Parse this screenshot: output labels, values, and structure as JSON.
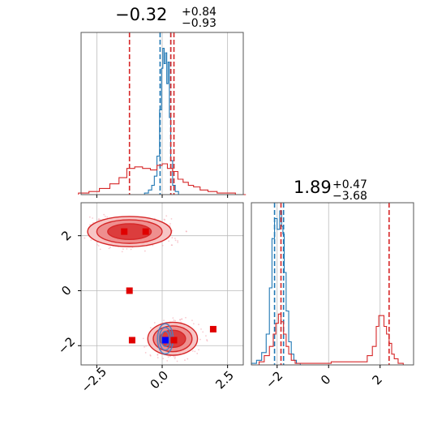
{
  "chart_data": [
    {
      "type": "histogram",
      "panel": "top-left 1D marginal (parameter 1)",
      "title": {
        "value": "−0.32",
        "plus": "+0.84",
        "minus": "−0.93"
      },
      "xlim": [
        -3.1,
        3.1
      ],
      "xticks": [
        -2.5,
        0.0,
        2.5
      ],
      "grid": true,
      "series": [
        {
          "color": "#1f77b4",
          "lines": [
            -0.08,
            0.33
          ],
          "bins_x": [
            -0.75,
            -0.6,
            -0.45,
            -0.35,
            -0.25,
            -0.15,
            -0.05,
            0.0,
            0.05,
            0.1,
            0.15,
            0.2,
            0.25,
            0.3,
            0.35,
            0.45,
            0.55,
            0.7
          ],
          "counts": [
            0,
            0.01,
            0.03,
            0.06,
            0.12,
            0.25,
            0.55,
            0.82,
            0.95,
            0.85,
            0.92,
            0.72,
            0.86,
            0.5,
            0.22,
            0.06,
            0.02,
            0
          ]
        },
        {
          "color": "#d62728",
          "lines": [
            -1.25,
            0.33,
            0.45
          ],
          "bins_x": [
            -3.0,
            -2.6,
            -2.2,
            -1.8,
            -1.5,
            -1.2,
            -0.9,
            -0.6,
            -0.3,
            -0.1,
            0.1,
            0.3,
            0.5,
            0.7,
            0.9,
            1.1,
            1.3,
            1.6,
            1.9,
            2.3,
            2.6,
            3.0
          ],
          "counts": [
            0.01,
            0.02,
            0.04,
            0.07,
            0.11,
            0.17,
            0.18,
            0.17,
            0.16,
            0.19,
            0.2,
            0.17,
            0.15,
            0.1,
            0.08,
            0.06,
            0.05,
            0.03,
            0.02,
            0.01,
            0.01,
            0
          ]
        }
      ]
    },
    {
      "type": "histogram",
      "panel": "bottom-right 1D marginal (parameter 2)",
      "title": {
        "value": "1.89",
        "plus": "+0.47",
        "minus": "−3.68"
      },
      "xlim": [
        -3.0,
        3.3
      ],
      "xticks": [
        -2,
        0,
        2
      ],
      "grid": true,
      "series": [
        {
          "color": "#1f77b4",
          "lines": [
            -2.1,
            -1.75
          ],
          "bins_x": [
            -2.9,
            -2.7,
            -2.5,
            -2.35,
            -2.25,
            -2.15,
            -2.05,
            -1.95,
            -1.85,
            -1.8,
            -1.75,
            -1.7,
            -1.6,
            -1.5,
            -1.4,
            -1.3,
            -1.2,
            -1.0
          ],
          "counts": [
            0.01,
            0.03,
            0.08,
            0.2,
            0.5,
            0.82,
            0.95,
            0.88,
            1.0,
            0.9,
            0.85,
            0.6,
            0.35,
            0.15,
            0.07,
            0.03,
            0.01,
            0
          ]
        },
        {
          "color": "#d62728",
          "lines": [
            -1.85,
            2.35
          ],
          "bins_x": [
            -2.6,
            -2.4,
            -2.2,
            -2.1,
            -2.0,
            -1.9,
            -1.8,
            -1.7,
            -1.6,
            -1.5,
            -1.4,
            -1.2,
            1.4,
            1.6,
            1.8,
            1.9,
            2.0,
            2.1,
            2.2,
            2.3,
            2.4,
            2.5,
            2.6,
            2.8
          ],
          "counts": [
            0.02,
            0.06,
            0.12,
            0.2,
            0.27,
            0.33,
            0.28,
            0.2,
            0.12,
            0.07,
            0.03,
            0.01,
            0.02,
            0.06,
            0.12,
            0.25,
            0.32,
            0.32,
            0.25,
            0.2,
            0.14,
            0.07,
            0.04,
            0.01
          ]
        }
      ]
    },
    {
      "type": "contour",
      "panel": "bottom-left 2D joint (parameter 1 vs parameter 2)",
      "xlim": [
        -3.1,
        3.1
      ],
      "ylim": [
        -2.7,
        3.2
      ],
      "xticks": [
        -2.5,
        0.0,
        2.5
      ],
      "yticks": [
        -2,
        0,
        2
      ],
      "grid": true,
      "red_blobs": [
        {
          "cx": -1.25,
          "cy": 2.15,
          "rx": 1.6,
          "ry": 0.55
        },
        {
          "cx": 0.4,
          "cy": -1.75,
          "rx": 0.95,
          "ry": 0.6
        }
      ],
      "blue_blob": {
        "cx": 0.12,
        "cy": -1.75,
        "rx": 0.3,
        "ry": 0.55
      },
      "red_markers": [
        [
          -1.45,
          2.15
        ],
        [
          -0.63,
          2.15
        ],
        [
          -1.25,
          0.0
        ],
        [
          -1.15,
          -1.8
        ],
        [
          1.95,
          -1.4
        ],
        [
          0.45,
          -1.8
        ]
      ],
      "blue_marker": [
        0.12,
        -1.8
      ]
    }
  ]
}
